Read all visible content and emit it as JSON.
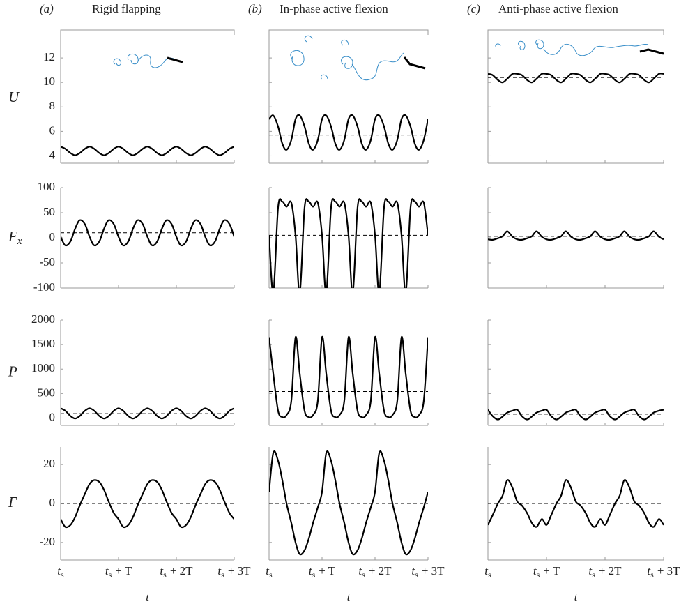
{
  "chart_data": [
    {
      "type": "line",
      "panel_label": "(a)",
      "title": "Rigid flapping",
      "ylabel": "U",
      "xlim": [
        0,
        3
      ],
      "ylim": [
        3.4,
        14
      ],
      "yticks": [
        4,
        6,
        8,
        10,
        12
      ],
      "mean": 4.4,
      "x": [
        0,
        0.08,
        0.17,
        0.25,
        0.33,
        0.42,
        0.5,
        0.58,
        0.67,
        0.75,
        0.83,
        0.92,
        1,
        1.08,
        1.17,
        1.25,
        1.33,
        1.42,
        1.5,
        1.58,
        1.67,
        1.75,
        1.83,
        1.92,
        2,
        2.08,
        2.17,
        2.25,
        2.33,
        2.42,
        2.5,
        2.58,
        2.67,
        2.75,
        2.83,
        2.92,
        3
      ],
      "series": [
        {
          "color": "#000000",
          "values": [
            4.75,
            4.58,
            4.23,
            4.05,
            4.23,
            4.58,
            4.75,
            4.58,
            4.23,
            4.05,
            4.23,
            4.58,
            4.75,
            4.58,
            4.23,
            4.05,
            4.23,
            4.58,
            4.75,
            4.58,
            4.23,
            4.05,
            4.23,
            4.58,
            4.75,
            4.58,
            4.23,
            4.05,
            4.23,
            4.58,
            4.75,
            4.58,
            4.23,
            4.05,
            4.23,
            4.58,
            4.75
          ]
        }
      ]
    },
    {
      "type": "line",
      "panel_label": "(b)",
      "title": "In-phase active flexion",
      "xlim": [
        0,
        3
      ],
      "ylim": [
        3.4,
        14
      ],
      "mean": 5.7,
      "x": [
        0,
        0.08,
        0.17,
        0.25,
        0.33,
        0.42,
        0.5,
        0.58,
        0.67,
        0.75,
        0.83,
        0.92,
        1,
        1.08,
        1.17,
        1.25,
        1.33,
        1.42,
        1.5,
        1.58,
        1.67,
        1.75,
        1.83,
        1.92,
        2,
        2.08,
        2.17,
        2.25,
        2.33,
        2.42,
        2.5,
        2.58,
        2.67,
        2.75,
        2.83,
        2.92,
        3
      ],
      "series": [
        {
          "color": "#000000",
          "values": [
            7.0,
            7.3,
            6.4,
            5.0,
            4.5,
            5.3,
            7.0,
            7.3,
            6.4,
            5.0,
            4.5,
            5.3,
            7.0,
            7.3,
            6.4,
            5.0,
            4.5,
            5.3,
            7.0,
            7.3,
            6.4,
            5.0,
            4.5,
            5.3,
            7.0,
            7.3,
            6.4,
            5.0,
            4.5,
            5.3,
            7.0,
            7.3,
            6.4,
            5.0,
            4.5,
            5.3,
            7.0
          ]
        }
      ]
    },
    {
      "type": "line",
      "panel_label": "(c)",
      "title": "Anti-phase active flexion",
      "xlim": [
        0,
        3
      ],
      "ylim": [
        3.4,
        14
      ],
      "mean": 10.4,
      "x": [
        0,
        0.08,
        0.17,
        0.25,
        0.33,
        0.42,
        0.5,
        0.58,
        0.67,
        0.75,
        0.83,
        0.92,
        1,
        1.08,
        1.17,
        1.25,
        1.33,
        1.42,
        1.5,
        1.58,
        1.67,
        1.75,
        1.83,
        1.92,
        2,
        2.08,
        2.17,
        2.25,
        2.33,
        2.42,
        2.5,
        2.58,
        2.67,
        2.75,
        2.83,
        2.92,
        3
      ],
      "series": [
        {
          "color": "#000000",
          "values": [
            10.7,
            10.6,
            10.2,
            10.0,
            10.3,
            10.7,
            10.7,
            10.6,
            10.2,
            10.0,
            10.3,
            10.7,
            10.7,
            10.6,
            10.2,
            10.0,
            10.3,
            10.7,
            10.7,
            10.6,
            10.2,
            10.0,
            10.3,
            10.7,
            10.7,
            10.6,
            10.2,
            10.0,
            10.3,
            10.7,
            10.7,
            10.6,
            10.2,
            10.0,
            10.3,
            10.7,
            10.7
          ]
        }
      ]
    },
    {
      "type": "line",
      "ylabel": "F",
      "ylabel_sub": "x",
      "xlim": [
        0,
        3
      ],
      "ylim": [
        -100,
        100
      ],
      "yticks": [
        -100,
        -50,
        0,
        50,
        100
      ],
      "mean": 10,
      "x": [
        0,
        0.08,
        0.17,
        0.25,
        0.33,
        0.42,
        0.5,
        0.58,
        0.67,
        0.75,
        0.83,
        0.92,
        1,
        1.08,
        1.17,
        1.25,
        1.33,
        1.42,
        1.5,
        1.58,
        1.67,
        1.75,
        1.83,
        1.92,
        2,
        2.08,
        2.17,
        2.25,
        2.33,
        2.42,
        2.5,
        2.58,
        2.67,
        2.75,
        2.83,
        2.92,
        3
      ],
      "series": [
        {
          "color": "#000000",
          "values": [
            2,
            -15,
            -7,
            18,
            35,
            27,
            2,
            -15,
            -7,
            18,
            35,
            27,
            2,
            -15,
            -7,
            18,
            35,
            27,
            2,
            -15,
            -7,
            18,
            35,
            27,
            2,
            -15,
            -7,
            18,
            35,
            27,
            2,
            -15,
            -7,
            18,
            35,
            27,
            2
          ]
        }
      ]
    },
    {
      "type": "line",
      "xlim": [
        0,
        3
      ],
      "ylim": [
        -100,
        100
      ],
      "mean": 5,
      "x": [
        0,
        0.08,
        0.17,
        0.25,
        0.33,
        0.42,
        0.5,
        0.58,
        0.67,
        0.75,
        0.83,
        0.92,
        1,
        1.08,
        1.17,
        1.25,
        1.33,
        1.42,
        1.5,
        1.58,
        1.67,
        1.75,
        1.83,
        1.92,
        2,
        2.08,
        2.17,
        2.25,
        2.33,
        2.42,
        2.5,
        2.58,
        2.67,
        2.75,
        2.83,
        2.92,
        3
      ],
      "series": [
        {
          "color": "#000000",
          "values": [
            5,
            -110,
            60,
            72,
            62,
            70,
            5,
            -110,
            60,
            72,
            62,
            70,
            5,
            -110,
            60,
            72,
            62,
            70,
            5,
            -110,
            60,
            72,
            62,
            70,
            5,
            -110,
            60,
            72,
            62,
            70,
            5,
            -110,
            60,
            72,
            62,
            70,
            5
          ]
        }
      ]
    },
    {
      "type": "line",
      "xlim": [
        0,
        3
      ],
      "ylim": [
        -100,
        100
      ],
      "mean": 3,
      "x": [
        0,
        0.08,
        0.17,
        0.25,
        0.33,
        0.42,
        0.5,
        0.58,
        0.67,
        0.75,
        0.83,
        0.92,
        1,
        1.08,
        1.17,
        1.25,
        1.33,
        1.42,
        1.5,
        1.58,
        1.67,
        1.75,
        1.83,
        1.92,
        2,
        2.08,
        2.17,
        2.25,
        2.33,
        2.42,
        2.5,
        2.58,
        2.67,
        2.75,
        2.83,
        2.92,
        3
      ],
      "series": [
        {
          "color": "#000000",
          "values": [
            -3,
            -4,
            -1,
            3,
            13,
            2,
            -3,
            -4,
            -1,
            3,
            13,
            2,
            -3,
            -4,
            -1,
            3,
            13,
            2,
            -3,
            -4,
            -1,
            3,
            13,
            2,
            -3,
            -4,
            -1,
            3,
            13,
            2,
            -3,
            -4,
            -1,
            3,
            13,
            2,
            -3
          ]
        }
      ]
    },
    {
      "type": "line",
      "ylabel": "P",
      "xlim": [
        0,
        3
      ],
      "ylim": [
        -150,
        2000
      ],
      "yticks": [
        0,
        500,
        1000,
        1500,
        2000
      ],
      "mean": 90,
      "x": [
        0,
        0.08,
        0.17,
        0.25,
        0.33,
        0.42,
        0.5,
        0.58,
        0.67,
        0.75,
        0.83,
        0.92,
        1,
        1.08,
        1.17,
        1.25,
        1.33,
        1.42,
        1.5,
        1.58,
        1.67,
        1.75,
        1.83,
        1.92,
        2,
        2.08,
        2.17,
        2.25,
        2.33,
        2.42,
        2.5,
        2.58,
        2.67,
        2.75,
        2.83,
        2.92,
        3
      ],
      "series": [
        {
          "color": "#000000",
          "values": [
            200,
            150,
            40,
            -10,
            40,
            150,
            200,
            150,
            40,
            -10,
            40,
            150,
            200,
            150,
            40,
            -10,
            40,
            150,
            200,
            150,
            40,
            -10,
            40,
            150,
            200,
            150,
            40,
            -10,
            40,
            150,
            200,
            150,
            40,
            -10,
            40,
            150,
            200
          ]
        }
      ]
    },
    {
      "type": "line",
      "xlim": [
        0,
        3
      ],
      "ylim": [
        -150,
        2000
      ],
      "mean": 540,
      "x": [
        0,
        0.08,
        0.17,
        0.25,
        0.33,
        0.42,
        0.5,
        0.58,
        0.67,
        0.75,
        0.83,
        0.92,
        1,
        1.08,
        1.17,
        1.25,
        1.33,
        1.42,
        1.5,
        1.58,
        1.67,
        1.75,
        1.83,
        1.92,
        2,
        2.08,
        2.17,
        2.25,
        2.33,
        2.42,
        2.5,
        2.58,
        2.67,
        2.75,
        2.83,
        2.92,
        3
      ],
      "series": [
        {
          "color": "#000000",
          "values": [
            1650,
            900,
            150,
            20,
            60,
            350,
            1650,
            900,
            150,
            20,
            60,
            350,
            1650,
            900,
            150,
            20,
            60,
            350,
            1650,
            900,
            150,
            20,
            60,
            350,
            1650,
            900,
            150,
            20,
            60,
            350,
            1650,
            900,
            150,
            20,
            60,
            350,
            1650
          ]
        }
      ]
    },
    {
      "type": "line",
      "xlim": [
        0,
        3
      ],
      "ylim": [
        -150,
        2000
      ],
      "mean": 80,
      "x": [
        0,
        0.08,
        0.17,
        0.25,
        0.33,
        0.42,
        0.5,
        0.58,
        0.67,
        0.75,
        0.83,
        0.92,
        1,
        1.08,
        1.17,
        1.25,
        1.33,
        1.42,
        1.5,
        1.58,
        1.67,
        1.75,
        1.83,
        1.92,
        2,
        2.08,
        2.17,
        2.25,
        2.33,
        2.42,
        2.5,
        2.58,
        2.67,
        2.75,
        2.83,
        2.92,
        3
      ],
      "series": [
        {
          "color": "#000000",
          "values": [
            170,
            40,
            -30,
            30,
            110,
            150,
            170,
            40,
            -30,
            30,
            110,
            150,
            170,
            40,
            -30,
            30,
            110,
            150,
            170,
            40,
            -30,
            30,
            110,
            150,
            170,
            40,
            -30,
            30,
            110,
            150,
            170,
            40,
            -30,
            30,
            110,
            150,
            170
          ]
        }
      ]
    },
    {
      "type": "line",
      "ylabel": "Γ",
      "xlabel": "t",
      "xlim": [
        0,
        3
      ],
      "ylim": [
        -29,
        29
      ],
      "yticks": [
        -20,
        0,
        20
      ],
      "mean": 0,
      "xticks": [
        {
          "value": 0,
          "label": "t",
          "sub": "s"
        },
        {
          "value": 1,
          "label": "t",
          "sub": "s",
          "suffix": "+ T"
        },
        {
          "value": 2,
          "label": "t",
          "sub": "s",
          "suffix": "+ 2T"
        },
        {
          "value": 3,
          "label": "t",
          "sub": "s",
          "suffix": "+ 3T"
        }
      ],
      "x": [
        0,
        0.08,
        0.17,
        0.25,
        0.33,
        0.42,
        0.5,
        0.58,
        0.67,
        0.75,
        0.83,
        0.92,
        1,
        1.08,
        1.17,
        1.25,
        1.33,
        1.42,
        1.5,
        1.58,
        1.67,
        1.75,
        1.83,
        1.92,
        2,
        2.08,
        2.17,
        2.25,
        2.33,
        2.42,
        2.5,
        2.58,
        2.67,
        2.75,
        2.83,
        2.92,
        3
      ],
      "series": [
        {
          "color": "#000000",
          "values": [
            -8,
            -12,
            -11,
            -7,
            -1,
            5,
            10,
            12,
            11,
            7,
            1,
            -5,
            -8,
            -12,
            -11,
            -7,
            -1,
            5,
            10,
            12,
            11,
            7,
            1,
            -5,
            -8,
            -12,
            -11,
            -7,
            -1,
            5,
            10,
            12,
            11,
            7,
            1,
            -5,
            -8
          ]
        }
      ]
    },
    {
      "type": "line",
      "xlabel": "t",
      "xlim": [
        0,
        3
      ],
      "ylim": [
        -29,
        29
      ],
      "mean": 0,
      "xticks": [
        {
          "value": 0,
          "label": "t",
          "sub": "s"
        },
        {
          "value": 1,
          "label": "t",
          "sub": "s",
          "suffix": "+ T"
        },
        {
          "value": 2,
          "label": "t",
          "sub": "s",
          "suffix": "+ 2T"
        },
        {
          "value": 3,
          "label": "t",
          "sub": "s",
          "suffix": "+ 3T"
        }
      ],
      "x": [
        0,
        0.08,
        0.17,
        0.25,
        0.33,
        0.42,
        0.5,
        0.58,
        0.67,
        0.75,
        0.83,
        0.92,
        1,
        1.08,
        1.17,
        1.25,
        1.33,
        1.42,
        1.5,
        1.58,
        1.67,
        1.75,
        1.83,
        1.92,
        2,
        2.08,
        2.17,
        2.25,
        2.33,
        2.42,
        2.5,
        2.58,
        2.67,
        2.75,
        2.83,
        2.92,
        3
      ],
      "series": [
        {
          "color": "#000000",
          "values": [
            6,
            26,
            22,
            12,
            0,
            -10,
            -20,
            -26,
            -24,
            -18,
            -10,
            -2,
            6,
            26,
            22,
            12,
            0,
            -10,
            -20,
            -26,
            -24,
            -18,
            -10,
            -2,
            6,
            26,
            22,
            12,
            0,
            -10,
            -20,
            -26,
            -24,
            -18,
            -10,
            -2,
            6
          ]
        }
      ]
    },
    {
      "type": "line",
      "xlabel": "t",
      "xlim": [
        0,
        3
      ],
      "ylim": [
        -29,
        29
      ],
      "mean": 0,
      "xticks": [
        {
          "value": 0,
          "label": "t",
          "sub": "s"
        },
        {
          "value": 1,
          "label": "t",
          "sub": "s",
          "suffix": "+ T"
        },
        {
          "value": 2,
          "label": "t",
          "sub": "s",
          "suffix": "+ 2T"
        },
        {
          "value": 3,
          "label": "t",
          "sub": "s",
          "suffix": "+ 3T"
        }
      ],
      "x": [
        0,
        0.08,
        0.17,
        0.25,
        0.33,
        0.42,
        0.5,
        0.58,
        0.67,
        0.75,
        0.83,
        0.92,
        1,
        1.08,
        1.17,
        1.25,
        1.33,
        1.42,
        1.5,
        1.58,
        1.67,
        1.75,
        1.83,
        1.92,
        2,
        2.08,
        2.17,
        2.25,
        2.33,
        2.42,
        2.5,
        2.58,
        2.67,
        2.75,
        2.83,
        2.92,
        3
      ],
      "series": [
        {
          "color": "#000000",
          "values": [
            -11,
            -6,
            0,
            4,
            12,
            8,
            1,
            -1,
            -5,
            -10,
            -12,
            -8,
            -11,
            -6,
            0,
            4,
            12,
            8,
            1,
            -1,
            -5,
            -10,
            -12,
            -8,
            -11,
            -6,
            0,
            4,
            12,
            8,
            1,
            -1,
            -5,
            -10,
            -12,
            -8,
            -11
          ]
        }
      ]
    }
  ]
}
